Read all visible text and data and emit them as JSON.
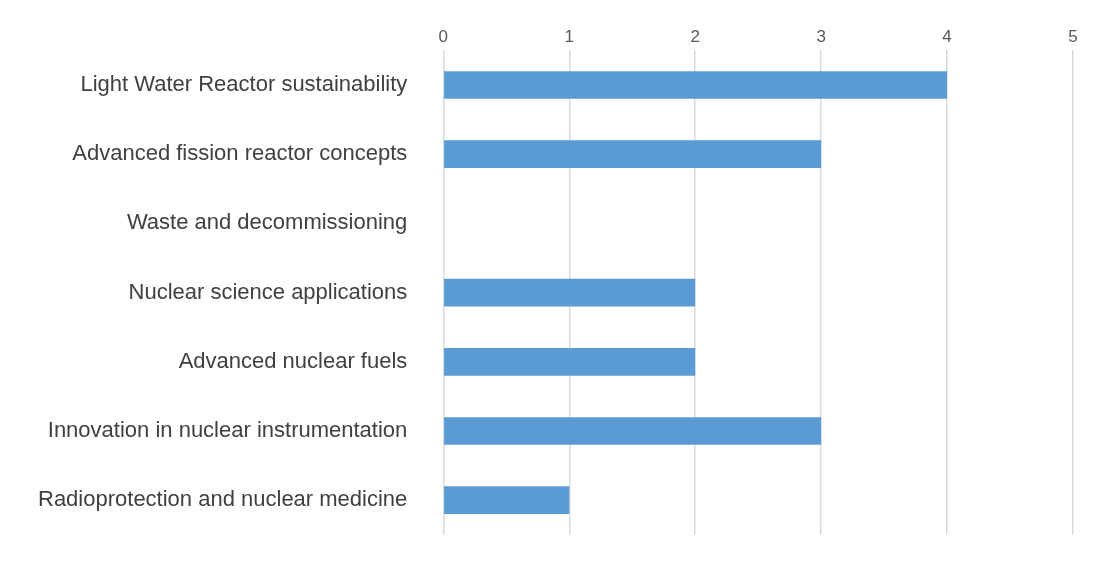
{
  "chart_data": {
    "type": "bar",
    "orientation": "horizontal",
    "categories": [
      "Light Water Reactor sustainability",
      "Advanced fission reactor concepts",
      "Waste and decommissioning",
      "Nuclear science applications",
      "Advanced nuclear fuels",
      "Innovation in nuclear instrumentation",
      "Radioprotection and nuclear medicine"
    ],
    "values": [
      4,
      3,
      0,
      2,
      2,
      3,
      1
    ],
    "color": "#5b9bd5",
    "xlim": [
      0,
      5
    ],
    "xticks": [
      0,
      1,
      2,
      3,
      4,
      5
    ],
    "grid": "x",
    "legend": false
  }
}
